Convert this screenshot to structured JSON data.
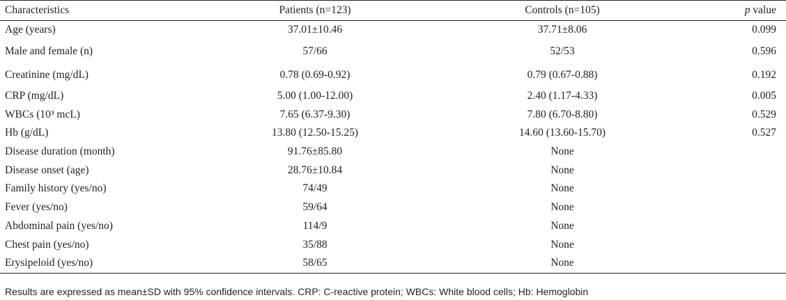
{
  "table": {
    "headers": {
      "characteristics": "Characteristics",
      "patients": "Patients (n=123)",
      "controls": "Controls (n=105)",
      "p_italic": "p",
      "p_rest": " value"
    },
    "rows": [
      {
        "label": "Age (years)",
        "patients": "37.01±10.46",
        "controls": "37.71±8.06",
        "p": "0.099"
      },
      {
        "label": "Male and female (n)",
        "patients": "57/66",
        "controls": "52/53",
        "p": "0.596"
      },
      {
        "label": "Creatinine (mg/dL)",
        "patients": "0.78 (0.69-0.92)",
        "controls": "0.79 (0.67-0.88)",
        "p": "0.192"
      },
      {
        "label": "CRP (mg/dL)",
        "patients": "5.00 (1.00-12.00)",
        "controls": "2.40 (1.17-4.33)",
        "p": "0.005"
      },
      {
        "label": "WBCs (10³ mcL)",
        "patients": "7.65 (6.37-9.30)",
        "controls": "7.80 (6.70-8.80)",
        "p": "0.529"
      },
      {
        "label": "Hb (g/dL)",
        "patients": "13.80 (12.50-15.25)",
        "controls": "14.60 (13.60-15.70)",
        "p": "0.527"
      },
      {
        "label": "Disease duration (month)",
        "patients": "91.76±85.80",
        "controls": "None",
        "p": ""
      },
      {
        "label": "Disease onset (age)",
        "patients": "28.76±10.84",
        "controls": "None",
        "p": ""
      },
      {
        "label": "Family history (yes/no)",
        "patients": "74/49",
        "controls": "None",
        "p": ""
      },
      {
        "label": "Fever (yes/no)",
        "patients": "59/64",
        "controls": "None",
        "p": ""
      },
      {
        "label": "Abdominal pain (yes/no)",
        "patients": "114/9",
        "controls": "None",
        "p": ""
      },
      {
        "label": "Chest pain (yes/no)",
        "patients": "35/88",
        "controls": "None",
        "p": ""
      },
      {
        "label": "Erysipeloid (yes/no)",
        "patients": "58/65",
        "controls": "None",
        "p": ""
      }
    ]
  },
  "footnote": "Results are expressed as mean±SD with 95% confidence intervals. CRP: C-reactive protein; WBCs: White blood cells; Hb: Hemoglobin"
}
